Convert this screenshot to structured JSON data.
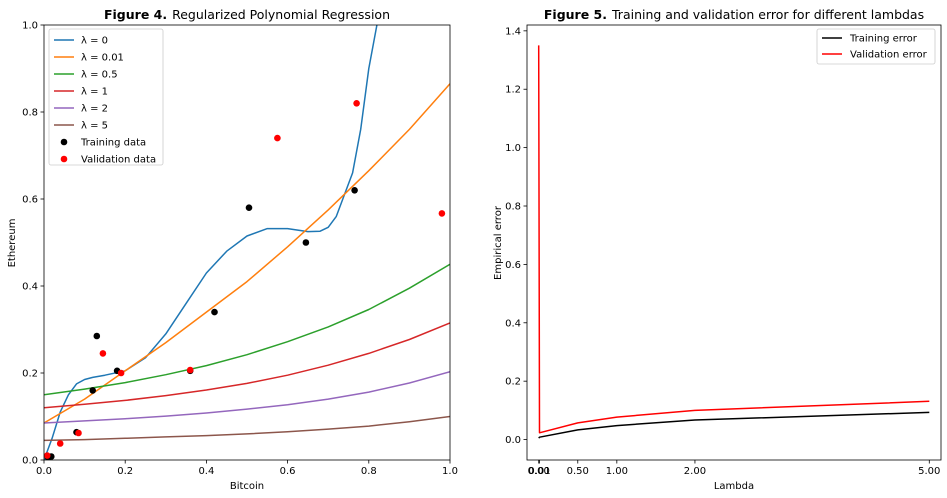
{
  "chart_data": [
    {
      "type": "line",
      "title_bold": "Figure 4.",
      "title": "Regularized Polynomial Regression",
      "xlabel": "Bitcoin",
      "ylabel": "Ethereum",
      "xlim": [
        0,
        1
      ],
      "ylim": [
        0,
        1
      ],
      "xticks": [
        "0.0",
        "0.2",
        "0.4",
        "0.6",
        "0.8",
        "1.0"
      ],
      "yticks": [
        "0.0",
        "0.2",
        "0.4",
        "0.6",
        "0.8",
        "1.0"
      ],
      "grid": false,
      "legend_position": "top-left",
      "series": [
        {
          "name": "λ = 0",
          "color": "#1f77b4",
          "x": [
            0.0,
            0.02,
            0.04,
            0.06,
            0.08,
            0.1,
            0.12,
            0.15,
            0.2,
            0.25,
            0.3,
            0.35,
            0.4,
            0.45,
            0.5,
            0.55,
            0.6,
            0.65,
            0.68,
            0.7,
            0.72,
            0.74,
            0.76,
            0.78,
            0.8,
            0.82
          ],
          "y": [
            0.0,
            0.05,
            0.11,
            0.15,
            0.175,
            0.185,
            0.19,
            0.195,
            0.205,
            0.235,
            0.29,
            0.36,
            0.43,
            0.48,
            0.515,
            0.532,
            0.532,
            0.525,
            0.526,
            0.535,
            0.56,
            0.61,
            0.66,
            0.76,
            0.9,
            1.0
          ]
        },
        {
          "name": "λ = 0.01",
          "color": "#ff7f0e",
          "x": [
            0.0,
            0.1,
            0.2,
            0.3,
            0.4,
            0.5,
            0.6,
            0.7,
            0.8,
            0.9,
            1.0
          ],
          "y": [
            0.085,
            0.14,
            0.205,
            0.27,
            0.34,
            0.41,
            0.49,
            0.575,
            0.665,
            0.76,
            0.865
          ]
        },
        {
          "name": "λ = 0.5",
          "color": "#2ca02c",
          "x": [
            0.0,
            0.1,
            0.2,
            0.3,
            0.4,
            0.5,
            0.6,
            0.7,
            0.8,
            0.9,
            1.0
          ],
          "y": [
            0.15,
            0.163,
            0.178,
            0.196,
            0.217,
            0.242,
            0.272,
            0.306,
            0.346,
            0.395,
            0.45
          ]
        },
        {
          "name": "λ = 1",
          "color": "#d62728",
          "x": [
            0.0,
            0.1,
            0.2,
            0.3,
            0.4,
            0.5,
            0.6,
            0.7,
            0.8,
            0.9,
            1.0
          ],
          "y": [
            0.12,
            0.128,
            0.137,
            0.148,
            0.161,
            0.176,
            0.195,
            0.218,
            0.245,
            0.277,
            0.315
          ]
        },
        {
          "name": "λ = 2",
          "color": "#9467bd",
          "x": [
            0.0,
            0.1,
            0.2,
            0.3,
            0.4,
            0.5,
            0.6,
            0.7,
            0.8,
            0.9,
            1.0
          ],
          "y": [
            0.085,
            0.09,
            0.095,
            0.101,
            0.108,
            0.117,
            0.127,
            0.14,
            0.156,
            0.177,
            0.203
          ]
        },
        {
          "name": "λ = 5",
          "color": "#8c564b",
          "x": [
            0.0,
            0.1,
            0.2,
            0.3,
            0.4,
            0.5,
            0.6,
            0.7,
            0.8,
            0.9,
            1.0
          ],
          "y": [
            0.045,
            0.047,
            0.05,
            0.053,
            0.056,
            0.06,
            0.065,
            0.071,
            0.078,
            0.088,
            0.1
          ]
        }
      ],
      "scatter_series": [
        {
          "name": "Training data",
          "color": "#000000",
          "points": [
            [
              0.01,
              0.005
            ],
            [
              0.018,
              0.008
            ],
            [
              0.08,
              0.064
            ],
            [
              0.12,
              0.16
            ],
            [
              0.13,
              0.285
            ],
            [
              0.18,
              0.205
            ],
            [
              0.36,
              0.205
            ],
            [
              0.42,
              0.34
            ],
            [
              0.505,
              0.58
            ],
            [
              0.645,
              0.5
            ],
            [
              0.765,
              0.62
            ]
          ]
        },
        {
          "name": "Validation data",
          "color": "#ff0000",
          "points": [
            [
              0.008,
              0.01
            ],
            [
              0.04,
              0.038
            ],
            [
              0.085,
              0.062
            ],
            [
              0.145,
              0.245
            ],
            [
              0.19,
              0.2
            ],
            [
              0.36,
              0.207
            ],
            [
              0.575,
              0.74
            ],
            [
              0.77,
              0.82
            ],
            [
              0.98,
              0.567
            ]
          ]
        }
      ]
    },
    {
      "type": "line",
      "title_bold": "Figure 5.",
      "title": "Training and validation error for different lambdas",
      "xlabel": "Lambda",
      "ylabel": "Empirical error",
      "xlim": [
        -0.15,
        5.15
      ],
      "ylim": [
        -0.07,
        1.42
      ],
      "xtick_values": [
        0,
        0.01,
        0.5,
        1,
        2,
        5
      ],
      "xticks": [
        "0.00",
        "0.01",
        "0.50",
        "1.00",
        "2.00",
        "5.00"
      ],
      "ytick_values": [
        0,
        0.2,
        0.4,
        0.6,
        0.8,
        1.0,
        1.2,
        1.4
      ],
      "yticks": [
        "0.0",
        "0.2",
        "0.4",
        "0.6",
        "0.8",
        "1.0",
        "1.2",
        "1.4"
      ],
      "grid": false,
      "legend_position": "top-right",
      "series": [
        {
          "name": "Training error",
          "color": "#000000",
          "x": [
            0,
            0.01,
            0.5,
            1,
            2,
            5
          ],
          "y": [
            0.005,
            0.008,
            0.033,
            0.048,
            0.067,
            0.093
          ]
        },
        {
          "name": "Validation error",
          "color": "#ff0000",
          "x": [
            0,
            0.01,
            0.5,
            1,
            2,
            5
          ],
          "y": [
            1.35,
            0.023,
            0.057,
            0.077,
            0.1,
            0.131
          ]
        }
      ]
    }
  ]
}
